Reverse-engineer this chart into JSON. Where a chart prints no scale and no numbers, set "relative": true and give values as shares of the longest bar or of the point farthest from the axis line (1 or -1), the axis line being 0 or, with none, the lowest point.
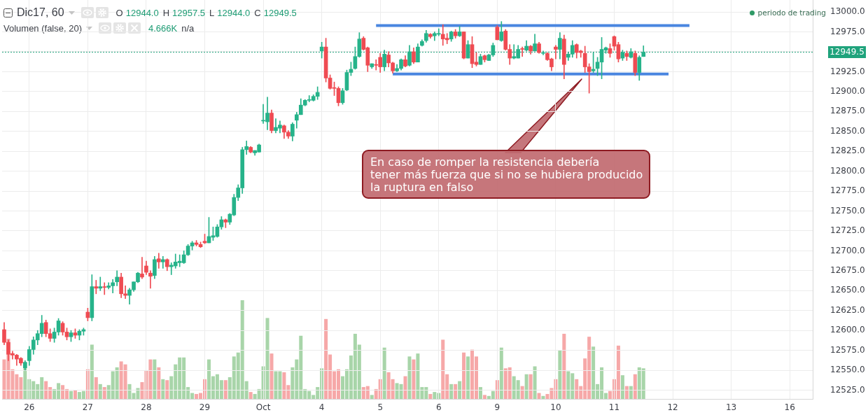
{
  "chart_data": [
    {
      "type": "candlestick",
      "title": "Dic17, 60",
      "subtitle": "O 12944.0 H 12957.5 L 12944.0 C 12949.5",
      "annotations": [
        "periodo de trading",
        "En caso de romper la resistencia debería\ntener más fuerza que si no se hubiera producido\nla ruptura en falso"
      ],
      "categories": [
        null,
        null,
        null,
        null,
        null,
        null,
        "26",
        null,
        null,
        null,
        null,
        null,
        null,
        null,
        null,
        null,
        null,
        null,
        null,
        null,
        "27",
        null,
        null,
        null,
        null,
        null,
        null,
        null,
        null,
        null,
        null,
        null,
        null,
        null,
        "28",
        null,
        null,
        null,
        null,
        null,
        null,
        null,
        null,
        null,
        null,
        null,
        null,
        null,
        "29",
        null,
        null,
        null,
        null,
        null,
        null,
        null,
        null,
        null,
        null,
        null,
        null,
        null,
        "Oct",
        null,
        null,
        null,
        null,
        null,
        null,
        null,
        null,
        null,
        null,
        null,
        null,
        null,
        "4",
        null,
        null,
        null,
        null,
        null,
        null,
        null,
        null,
        null,
        null,
        null,
        null,
        null,
        "5",
        null,
        null,
        null,
        null,
        null,
        null,
        null,
        null,
        null,
        null,
        null,
        null,
        null,
        "6",
        null,
        null,
        null,
        null,
        null,
        null,
        null,
        null,
        null,
        null,
        null,
        null,
        null,
        "9",
        null,
        null,
        null,
        null,
        null,
        null,
        null,
        null,
        null,
        null,
        null,
        null,
        null,
        "10",
        null,
        null,
        null,
        null,
        null,
        null,
        null,
        null,
        null,
        null,
        null,
        null,
        null,
        "11",
        null,
        null,
        null,
        null,
        null,
        null,
        null,
        null,
        null,
        null,
        null,
        null,
        null,
        "12",
        null,
        null,
        null,
        null,
        null,
        null,
        null,
        null,
        null,
        null,
        null,
        null,
        null,
        "13",
        null,
        null,
        null,
        null,
        null,
        null,
        null,
        null,
        null,
        null,
        null,
        null,
        null,
        "16",
        null,
        null,
        null,
        null,
        null
      ],
      "ohlc": [
        [
          12601,
          12610,
          12582,
          12585
        ],
        [
          12585,
          12588,
          12562,
          12570
        ],
        [
          12571,
          12574,
          12564,
          12569
        ],
        [
          12569,
          12570,
          12556,
          12564
        ],
        [
          12565,
          12566,
          12556,
          12559
        ],
        [
          12553,
          12562,
          12550,
          12560
        ],
        [
          12562,
          12580,
          12556,
          12576
        ],
        [
          12576,
          12592,
          12570,
          12588
        ],
        [
          12588,
          12600,
          12582,
          12596
        ],
        [
          12596,
          12619,
          12592,
          12609
        ],
        [
          12610,
          12613,
          12592,
          12596
        ],
        [
          12596,
          12602,
          12586,
          12590
        ],
        [
          12590,
          12603,
          12585,
          12598
        ],
        [
          12598,
          12615,
          12594,
          12612
        ],
        [
          12609,
          12611,
          12594,
          12598
        ],
        [
          12598,
          12603,
          12588,
          12592
        ],
        [
          12592,
          12600,
          12586,
          12597
        ],
        [
          12597,
          12602,
          12590,
          12594
        ],
        [
          12594,
          12601,
          12588,
          12599
        ],
        [
          12599,
          12603,
          12594,
          12601
        ],
        [
          12623,
          12628,
          12612,
          12616
        ],
        [
          12616,
          12670,
          12612,
          12655
        ],
        [
          12655,
          12663,
          12646,
          12653
        ],
        [
          12653,
          12667,
          12650,
          12655
        ],
        [
          12655,
          12660,
          12645,
          12654
        ],
        [
          12654,
          12660,
          12652,
          12656
        ],
        [
          12656,
          12664,
          12647,
          12660
        ],
        [
          12661,
          12675,
          12656,
          12667
        ],
        [
          12667,
          12672,
          12641,
          12646
        ],
        [
          12646,
          12656,
          12640,
          12644
        ],
        [
          12644,
          12653,
          12633,
          12651
        ],
        [
          12651,
          12661,
          12649,
          12661
        ],
        [
          12661,
          12673,
          12660,
          12672
        ],
        [
          12671,
          12692,
          12665,
          12667
        ],
        [
          12681,
          12687,
          12670,
          12673
        ],
        [
          12672,
          12675,
          12653,
          12668
        ],
        [
          12669,
          12693,
          12665,
          12689
        ],
        [
          12690,
          12697,
          12678,
          12686
        ],
        [
          12686,
          12693,
          12678,
          12689
        ],
        [
          12689,
          12690,
          12675,
          12680
        ],
        [
          12680,
          12685,
          12670,
          12682
        ],
        [
          12681,
          12696,
          12678,
          12686
        ],
        [
          12685,
          12695,
          12680,
          12687
        ],
        [
          12685,
          12700,
          12684,
          12695
        ],
        [
          12695,
          12708,
          12694,
          12706
        ],
        [
          12706,
          12712,
          12701,
          12710
        ],
        [
          12710,
          12713,
          12706,
          12708
        ],
        [
          12708,
          12711,
          12704,
          12705
        ],
        [
          12712,
          12721,
          12709,
          12710
        ],
        [
          12710,
          12742,
          12710,
          12718
        ],
        [
          12717,
          12730,
          12713,
          12719
        ],
        [
          12718,
          12733,
          12717,
          12730
        ],
        [
          12730,
          12743,
          12727,
          12739
        ],
        [
          12739,
          12740,
          12729,
          12736
        ],
        [
          12736,
          12747,
          12733,
          12746
        ],
        [
          12745,
          12771,
          12744,
          12767
        ],
        [
          12767,
          12783,
          12763,
          12779
        ],
        [
          12779,
          12830,
          12772,
          12827
        ],
        [
          12827,
          12838,
          12821,
          12831
        ],
        [
          12830,
          12831,
          12823,
          12824
        ],
        [
          12823,
          12826,
          12820,
          12826
        ],
        [
          12824,
          12834,
          12824,
          12833
        ],
        [
          12863,
          12884,
          12860,
          12864
        ],
        [
          12862,
          12893,
          12852,
          12873
        ],
        [
          12873,
          12877,
          12848,
          12851
        ],
        [
          12851,
          12866,
          12848,
          12855
        ],
        [
          12854,
          12863,
          12848,
          12858
        ],
        [
          12857,
          12858,
          12841,
          12849
        ],
        [
          12849,
          12851,
          12841,
          12844
        ],
        [
          12844,
          12861,
          12838,
          12859
        ],
        [
          12864,
          12874,
          12854,
          12871
        ],
        [
          12871,
          12891,
          12871,
          12883
        ],
        [
          12883,
          12890,
          12882,
          12889
        ],
        [
          12889,
          12895,
          12887,
          12890
        ],
        [
          12889,
          12896,
          12888,
          12894
        ],
        [
          12894,
          12906,
          12890,
          12899
        ],
        [
          12951,
          12962,
          12942,
          12956
        ],
        [
          12956,
          12967,
          12912,
          12917
        ],
        [
          12917,
          12921,
          12903,
          12904
        ],
        [
          12905,
          12912,
          12895,
          12904
        ],
        [
          12904,
          12906,
          12882,
          12886
        ],
        [
          12886,
          12904,
          12884,
          12901
        ],
        [
          12902,
          12927,
          12901,
          12924
        ],
        [
          12924,
          12937,
          12920,
          12928
        ],
        [
          12929,
          12956,
          12928,
          12944
        ],
        [
          12944,
          12974,
          12943,
          12966
        ],
        [
          12967,
          12969,
          12952,
          12953
        ],
        [
          12955,
          12956,
          12925,
          12933
        ],
        [
          12931,
          12935,
          12929,
          12935
        ],
        [
          12934,
          12940,
          12927,
          12933
        ],
        [
          12943,
          12948,
          12924,
          12931
        ],
        [
          12931,
          12952,
          12926,
          12947
        ],
        [
          12946,
          12950,
          12931,
          12936
        ],
        [
          12936,
          12937,
          12923,
          12926
        ],
        [
          12926,
          12934,
          12925,
          12929
        ],
        [
          12929,
          12941,
          12927,
          12940
        ],
        [
          12940,
          12945,
          12931,
          12932
        ],
        [
          12933,
          12958,
          12932,
          12950
        ],
        [
          12950,
          12955,
          12935,
          12937
        ],
        [
          12937,
          12960,
          12937,
          12956
        ],
        [
          12958,
          12965,
          12957,
          12963
        ],
        [
          12964,
          12977,
          12962,
          12973
        ],
        [
          12972,
          12973,
          12967,
          12969
        ],
        [
          12970,
          12975,
          12964,
          12973
        ],
        [
          12972,
          12979,
          12970,
          12973
        ],
        [
          12972,
          12984,
          12958,
          12966
        ],
        [
          12967,
          12973,
          12960,
          12965
        ],
        [
          12966,
          12976,
          12963,
          12975
        ],
        [
          12975,
          12978,
          12967,
          12970
        ],
        [
          12970,
          12982,
          12969,
          12975
        ],
        [
          12975,
          12975,
          12941,
          12942
        ],
        [
          12942,
          12964,
          12942,
          12959
        ],
        [
          12959,
          12969,
          12930,
          12935
        ],
        [
          12937,
          12949,
          12932,
          12934
        ],
        [
          12934,
          12947,
          12934,
          12944
        ],
        [
          12945,
          12946,
          12937,
          12940
        ],
        [
          12939,
          12947,
          12939,
          12946
        ],
        [
          12946,
          12961,
          12944,
          12958
        ],
        [
          12981,
          12983,
          12965,
          12965
        ],
        [
          12964,
          12988,
          12963,
          12975
        ],
        [
          12976,
          12978,
          12952,
          12953
        ],
        [
          12953,
          12959,
          12934,
          12942
        ],
        [
          12942,
          12959,
          12941,
          12944
        ],
        [
          12942,
          12958,
          12942,
          12953
        ],
        [
          12954,
          12956,
          12944,
          12953
        ],
        [
          12952,
          12964,
          12951,
          12957
        ],
        [
          12957,
          12958,
          12947,
          12951
        ],
        [
          12951,
          12972,
          12951,
          12960
        ],
        [
          12960,
          12962,
          12948,
          12949
        ],
        [
          12948,
          12951,
          12946,
          12949
        ],
        [
          12948,
          12949,
          12939,
          12940
        ],
        [
          12941,
          12942,
          12926,
          12931
        ],
        [
          12956,
          12958,
          12941,
          12953
        ],
        [
          12953,
          12974,
          12941,
          12967
        ],
        [
          12966,
          12971,
          12916,
          12934
        ],
        [
          12943,
          12949,
          12939,
          12947
        ],
        [
          12947,
          12964,
          12943,
          12958
        ],
        [
          12959,
          12960,
          12942,
          12949
        ],
        [
          12951,
          12952,
          12943,
          12949
        ],
        [
          12948,
          12957,
          12924,
          12931
        ],
        [
          12931,
          12935,
          12898,
          12925
        ],
        [
          12926,
          12949,
          12924,
          12928
        ],
        [
          12929,
          12943,
          12920,
          12937
        ],
        [
          12937,
          12968,
          12916,
          12953
        ],
        [
          12952,
          12956,
          12948,
          12955
        ],
        [
          12954,
          12960,
          12943,
          12948
        ],
        [
          12969,
          12970,
          12952,
          12957
        ],
        [
          12959,
          12962,
          12937,
          12941
        ],
        [
          12942,
          12952,
          12939,
          12949
        ],
        [
          12948,
          12951,
          12939,
          12944
        ],
        [
          12943,
          12954,
          12942,
          12950
        ],
        [
          12948,
          12951,
          12920,
          12924
        ],
        [
          12924,
          12945,
          12914,
          12943
        ],
        [
          12944,
          12957.5,
          12944,
          12949.5
        ],
        null,
        null,
        null,
        null,
        null,
        null,
        null,
        null,
        null,
        null,
        null,
        null,
        null,
        null,
        null,
        null,
        null,
        null,
        null,
        null,
        null,
        null,
        null,
        null,
        null,
        null,
        null,
        null,
        null,
        null,
        null,
        null,
        null,
        null,
        null,
        null,
        null,
        null,
        null,
        null
      ],
      "colors": [
        "#ef4b52",
        "#ef4b52",
        "#ef4b52",
        "#ef4b52",
        "#ef4b52",
        "#26b38a",
        "#26b38a",
        "#26b38a",
        "#26b38a",
        "#26b38a",
        "#ef4b52",
        "#ef4b52",
        "#26b38a",
        "#26b38a",
        "#ef4b52",
        "#ef4b52",
        "#26b38a",
        "#ef4b52",
        "#26b38a",
        "#26b38a",
        "#ef4b52",
        "#26b38a",
        "#ef4b52",
        "#26b38a",
        "#ef4b52",
        "#26b38a",
        "#26b38a",
        "#26b38a",
        "#ef4b52",
        "#ef4b52",
        "#26b38a",
        "#26b38a",
        "#26b38a",
        "#ef4b52",
        "#ef4b52",
        "#ef4b52",
        "#26b38a",
        "#ef4b52",
        "#26b38a",
        "#ef4b52",
        "#26b38a",
        "#26b38a",
        "#26b38a",
        "#26b38a",
        "#26b38a",
        "#26b38a",
        "#ef4b52",
        "#ef4b52",
        "#ef4b52",
        "#26b38a",
        "#26b38a",
        "#26b38a",
        "#26b38a",
        "#ef4b52",
        "#26b38a",
        "#26b38a",
        "#26b38a",
        "#26b38a",
        "#26b38a",
        "#ef4b52",
        "#26b38a",
        "#26b38a",
        "#26b38a",
        "#26b38a",
        "#ef4b52",
        "#26b38a",
        "#26b38a",
        "#ef4b52",
        "#ef4b52",
        "#26b38a",
        "#26b38a",
        "#26b38a",
        "#26b38a",
        "#26b38a",
        "#26b38a",
        "#26b38a",
        "#26b38a",
        "#ef4b52",
        "#ef4b52",
        "#ef4b52",
        "#ef4b52",
        "#26b38a",
        "#26b38a",
        "#26b38a",
        "#26b38a",
        "#26b38a",
        "#ef4b52",
        "#ef4b52",
        "#26b38a",
        "#ef4b52",
        "#ef4b52",
        "#26b38a",
        "#ef4b52",
        "#ef4b52",
        "#26b38a",
        "#26b38a",
        "#ef4b52",
        "#26b38a",
        "#ef4b52",
        "#26b38a",
        "#26b38a",
        "#26b38a",
        "#ef4b52",
        "#26b38a",
        "#26b38a",
        "#ef4b52",
        "#ef4b52",
        "#26b38a",
        "#ef4b52",
        "#26b38a",
        "#ef4b52",
        "#26b38a",
        "#ef4b52",
        "#ef4b52",
        "#26b38a",
        "#ef4b52",
        "#26b38a",
        "#26b38a",
        "#ef4b52",
        "#26b38a",
        "#ef4b52",
        "#ef4b52",
        "#26b38a",
        "#26b38a",
        "#ef4b52",
        "#26b38a",
        "#ef4b52",
        "#26b38a",
        "#ef4b52",
        "#26b38a",
        "#ef4b52",
        "#ef4b52",
        "#ef4b52",
        "#26b38a",
        "#ef4b52",
        "#26b38a",
        "#26b38a",
        "#ef4b52",
        "#ef4b52",
        "#ef4b52",
        "#ef4b52",
        "#26b38a",
        "#26b38a",
        "#26b38a",
        "#26b38a",
        "#ef4b52",
        "#ef4b52",
        "#ef4b52",
        "#26b38a",
        "#ef4b52",
        "#26b38a",
        "#ef4b52",
        "#26b38a",
        "#26b38a",
        null,
        null,
        null,
        null,
        null,
        null,
        null,
        null,
        null,
        null,
        null,
        null,
        null,
        null,
        null,
        null,
        null,
        null,
        null,
        null,
        null,
        null,
        null,
        null,
        null,
        null,
        null,
        null,
        null,
        null,
        null,
        null,
        null,
        null,
        null,
        null,
        null,
        null,
        null,
        null
      ],
      "series": [
        {
          "type": "line",
          "color": "#4a86e0",
          "values": [
            null,
            null,
            null,
            null,
            null,
            null,
            null,
            null,
            null,
            null,
            null,
            null,
            null,
            null,
            null,
            null,
            null,
            null,
            null,
            null,
            null,
            null,
            null,
            null,
            null,
            null,
            null,
            null,
            null,
            null,
            null,
            null,
            null,
            null,
            null,
            null,
            null,
            null,
            null,
            null,
            null,
            null,
            null,
            null,
            null,
            null,
            null,
            null,
            null,
            null,
            null,
            null,
            null,
            null,
            null,
            null,
            null,
            null,
            null,
            null,
            null,
            null,
            null,
            null,
            null,
            null,
            null,
            null,
            null,
            null,
            null,
            null,
            null,
            null,
            null,
            null,
            null,
            null,
            null,
            null,
            null,
            null,
            null,
            null,
            null,
            null,
            null,
            null,
            null,
            12983,
            null,
            null,
            null,
            null,
            null,
            null,
            null,
            null,
            null,
            null,
            null,
            null,
            null,
            null,
            null,
            null,
            null,
            null,
            null,
            null,
            null,
            null,
            null,
            null,
            null,
            null,
            null,
            null,
            null,
            null,
            null,
            null,
            null,
            null,
            null,
            null,
            null,
            null,
            null,
            null,
            null,
            null,
            null,
            null,
            null,
            null,
            null,
            null,
            null,
            null,
            null,
            null,
            null,
            null,
            null,
            null,
            null,
            null,
            null,
            null,
            null,
            null,
            null,
            null,
            null,
            null,
            null,
            null,
            null,
            null,
            null,
            null,
            null,
            null,
            12983,
            null,
            null,
            null,
            null,
            null,
            null,
            null,
            null,
            null,
            null,
            null,
            null,
            null,
            null,
            null,
            null,
            null,
            null,
            null,
            null,
            null,
            null,
            null,
            null,
            null,
            null,
            null,
            null,
            null
          ]
        },
        {
          "type": "line",
          "color": "#4a86e0",
          "values": [
            null,
            null,
            null,
            null,
            null,
            null,
            null,
            null,
            null,
            null,
            null,
            null,
            null,
            null,
            null,
            null,
            null,
            null,
            null,
            null,
            null,
            null,
            null,
            null,
            null,
            null,
            null,
            null,
            null,
            null,
            null,
            null,
            null,
            null,
            null,
            null,
            null,
            null,
            null,
            null,
            null,
            null,
            null,
            null,
            null,
            null,
            null,
            null,
            null,
            null,
            null,
            null,
            null,
            null,
            null,
            null,
            null,
            null,
            null,
            null,
            null,
            null,
            null,
            null,
            null,
            null,
            null,
            null,
            null,
            null,
            null,
            null,
            null,
            null,
            null,
            null,
            null,
            null,
            null,
            null,
            null,
            null,
            null,
            null,
            null,
            null,
            null,
            null,
            null,
            null,
            null,
            null,
            null,
            12922,
            null,
            null,
            null,
            null,
            null,
            null,
            null,
            null,
            null,
            null,
            null,
            null,
            null,
            null,
            null,
            null,
            null,
            null,
            null,
            null,
            null,
            null,
            null,
            null,
            null,
            null,
            null,
            null,
            null,
            null,
            null,
            null,
            null,
            null,
            null,
            null,
            null,
            null,
            null,
            null,
            null,
            null,
            null,
            null,
            null,
            null,
            null,
            null,
            null,
            null,
            null,
            null,
            null,
            null,
            null,
            null,
            null,
            null,
            null,
            null,
            null,
            null,
            null,
            null,
            null,
            12922,
            null,
            null,
            null,
            null,
            null,
            null,
            null,
            null,
            null,
            null,
            null,
            null,
            null,
            null,
            null,
            null,
            null,
            null,
            null,
            null,
            null,
            null,
            null,
            null,
            null,
            null,
            null,
            null,
            null,
            null,
            null,
            null,
            null,
            null
          ]
        }
      ],
      "ylim": [
        12514,
        13015
      ],
      "yticks": [
        {
          "value": 12525,
          "label": "12525.0"
        },
        {
          "value": 12550,
          "label": "12550.0"
        },
        {
          "value": 12575,
          "label": "12575.0"
        },
        {
          "value": 12600,
          "label": "12600.0"
        },
        {
          "value": 12625,
          "label": "12625.0"
        },
        {
          "value": 12650,
          "label": "12650.0"
        },
        {
          "value": 12675,
          "label": "12675.0"
        },
        {
          "value": 12700,
          "label": "12700.0"
        },
        {
          "value": 12725,
          "label": "12725.0"
        },
        {
          "value": 12750,
          "label": "12750.0"
        },
        {
          "value": 12775,
          "label": "12775.0"
        },
        {
          "value": 12800,
          "label": "12800.0"
        },
        {
          "value": 12825,
          "label": "12825.0"
        },
        {
          "value": 12850,
          "label": "12850.0"
        },
        {
          "value": 12875,
          "label": "12875.0"
        },
        {
          "value": 12900,
          "label": "12900.0"
        },
        {
          "value": 12925,
          "label": "12925.0"
        },
        {
          "value": 12950,
          "label": null
        },
        {
          "value": 12975,
          "label": "12975.0"
        },
        {
          "value": 13000,
          "label": "13000.0"
        }
      ],
      "ref_lines": [
        {
          "axis": "y",
          "value": 12949.5,
          "label": "12949.5",
          "color": "#1fa37c",
          "line_style": "dotted"
        }
      ],
      "grid": true
    },
    {
      "type": "bar",
      "title": "Volumen (false, 20)",
      "subtitle": "4.666K n/a",
      "relative": true,
      "tick_labels": false,
      "categories": [
        null,
        null,
        null,
        null,
        null,
        null,
        null,
        null,
        null,
        null,
        null,
        null,
        null,
        null,
        null,
        null,
        null,
        null,
        null,
        null,
        null,
        null,
        null,
        null,
        null,
        null,
        null,
        null,
        null,
        null,
        null,
        null,
        null,
        null,
        null,
        null,
        null,
        null,
        null,
        null,
        null,
        null,
        null,
        null,
        null,
        null,
        null,
        null,
        null,
        null,
        null,
        null,
        null,
        null,
        null,
        null,
        null,
        null,
        null,
        null,
        null,
        null,
        null,
        null,
        null,
        null,
        null,
        null,
        null,
        null,
        null,
        null,
        null,
        null,
        null,
        null,
        null,
        null,
        null,
        null,
        null,
        null,
        null,
        null,
        null,
        null,
        null,
        null,
        null,
        null,
        null,
        null,
        null,
        null,
        null,
        null,
        null,
        null,
        null,
        null,
        null,
        null,
        null,
        null,
        null,
        null,
        null,
        null,
        null,
        null,
        null,
        null,
        null,
        null,
        null,
        null,
        null,
        null,
        null,
        null,
        null,
        null,
        null,
        null,
        null,
        null,
        null,
        null,
        null,
        null,
        null,
        null,
        null,
        null,
        null,
        null,
        null,
        null,
        null,
        null,
        null,
        null,
        null,
        null,
        null,
        null,
        null,
        null,
        null,
        null,
        null,
        null,
        null,
        null,
        null,
        null,
        null,
        null,
        null,
        null,
        null,
        null,
        null,
        null,
        null,
        null,
        null,
        null,
        null,
        null,
        null,
        null,
        null,
        null,
        null,
        null,
        null,
        null,
        null,
        null,
        null,
        null,
        null,
        null,
        null,
        null,
        null,
        null,
        null,
        null,
        null,
        null,
        null,
        null
      ],
      "values": [
        0.4,
        0.61,
        0.3,
        0.25,
        0.22,
        0.37,
        0.2,
        0.18,
        0.15,
        0.22,
        0.18,
        0.12,
        0.1,
        0.16,
        0.14,
        0.1,
        0.08,
        0.09,
        0.07,
        0.08,
        0.3,
        0.55,
        0.22,
        0.15,
        0.12,
        0.14,
        0.28,
        0.32,
        0.38,
        0.35,
        0.15,
        0.06,
        0.11,
        0.17,
        0.29,
        0.4,
        0.4,
        0.32,
        0.2,
        0.19,
        0.23,
        0.35,
        0.42,
        0.42,
        0.12,
        0.06,
        0.05,
        0.06,
        0.2,
        0.4,
        0.23,
        0.25,
        0.19,
        0.19,
        0.22,
        0.43,
        0.47,
        1,
        0.18,
        0.07,
        0.05,
        0.1,
        0.33,
        0.82,
        0.46,
        0.28,
        0.28,
        0.27,
        0.14,
        0.32,
        0.4,
        0.64,
        0.1,
        0.08,
        0.04,
        0.12,
        0.31,
        0.81,
        0.45,
        0.28,
        0.3,
        0.23,
        0.3,
        0.44,
        0.66,
        0.55,
        0.12,
        0.13,
        0.04,
        0.1,
        0.2,
        0.52,
        0.27,
        0.2,
        0.16,
        0.15,
        0.23,
        0.43,
        0.4,
        0.46,
        0.12,
        0.12,
        0.05,
        0.07,
        0.06,
        0.6,
        0.25,
        0.15,
        0.15,
        0.18,
        0.47,
        0.43,
        0.5,
        0.43,
        0.12,
        0.04,
        0.03,
        0.08,
        0.19,
        0.52,
        0.31,
        0.32,
        0.23,
        0.19,
        0.13,
        0.25,
        0.25,
        0.33,
        0.06,
        0.03,
        0.05,
        0.11,
        0.2,
        0.49,
        0.66,
        0.28,
        0.26,
        0.2,
        0.13,
        0.41,
        0.63,
        0.53,
        0.15,
        0.32,
        0.06,
        0.08,
        0.2,
        0.54,
        0.24,
        0.13,
        0.13,
        0.25,
        0.32,
        0.31,
        null,
        null,
        null,
        null,
        null,
        null,
        null,
        null,
        null,
        null,
        null,
        null,
        null,
        null,
        null,
        null,
        null,
        null,
        null,
        null,
        null,
        null,
        null,
        null,
        null,
        null,
        null,
        null,
        null,
        null,
        null,
        null,
        null,
        null,
        null,
        null,
        null,
        null,
        null,
        null
      ],
      "colors": [
        "#f6a8a8",
        "#f6a8a8",
        "#f6a8a8",
        "#f6a8a8",
        "#f6a8a8",
        "#a8d5a9",
        "#a8d5a9",
        "#a8d5a9",
        "#a8d5a9",
        "#a8d5a9",
        "#f6a8a8",
        "#f6a8a8",
        "#a8d5a9",
        "#a8d5a9",
        "#f6a8a8",
        "#f6a8a8",
        "#a8d5a9",
        "#f6a8a8",
        "#a8d5a9",
        "#a8d5a9",
        "#f6a8a8",
        "#a8d5a9",
        "#f6a8a8",
        "#a8d5a9",
        "#f6a8a8",
        "#a8d5a9",
        "#a8d5a9",
        "#a8d5a9",
        "#f6a8a8",
        "#f6a8a8",
        "#a8d5a9",
        "#a8d5a9",
        "#a8d5a9",
        "#f6a8a8",
        "#f6a8a8",
        "#f6a8a8",
        "#a8d5a9",
        "#f6a8a8",
        "#a8d5a9",
        "#f6a8a8",
        "#a8d5a9",
        "#a8d5a9",
        "#a8d5a9",
        "#a8d5a9",
        "#a8d5a9",
        "#a8d5a9",
        "#f6a8a8",
        "#f6a8a8",
        "#f6a8a8",
        "#a8d5a9",
        "#a8d5a9",
        "#a8d5a9",
        "#a8d5a9",
        "#f6a8a8",
        "#a8d5a9",
        "#a8d5a9",
        "#a8d5a9",
        "#a8d5a9",
        "#a8d5a9",
        "#f6a8a8",
        "#a8d5a9",
        "#a8d5a9",
        "#a8d5a9",
        "#a8d5a9",
        "#f6a8a8",
        "#a8d5a9",
        "#a8d5a9",
        "#f6a8a8",
        "#f6a8a8",
        "#a8d5a9",
        "#a8d5a9",
        "#a8d5a9",
        "#a8d5a9",
        "#a8d5a9",
        "#a8d5a9",
        "#a8d5a9",
        "#a8d5a9",
        "#f6a8a8",
        "#f6a8a8",
        "#f6a8a8",
        "#f6a8a8",
        "#a8d5a9",
        "#a8d5a9",
        "#a8d5a9",
        "#a8d5a9",
        "#a8d5a9",
        "#f6a8a8",
        "#f6a8a8",
        "#a8d5a9",
        "#f6a8a8",
        "#f6a8a8",
        "#a8d5a9",
        "#f6a8a8",
        "#f6a8a8",
        "#a8d5a9",
        "#a8d5a9",
        "#f6a8a8",
        "#a8d5a9",
        "#f6a8a8",
        "#a8d5a9",
        "#a8d5a9",
        "#a8d5a9",
        "#f6a8a8",
        "#a8d5a9",
        "#a8d5a9",
        "#f6a8a8",
        "#f6a8a8",
        "#a8d5a9",
        "#f6a8a8",
        "#a8d5a9",
        "#f6a8a8",
        "#a8d5a9",
        "#f6a8a8",
        "#f6a8a8",
        "#a8d5a9",
        "#f6a8a8",
        "#a8d5a9",
        "#a8d5a9",
        "#f6a8a8",
        "#a8d5a9",
        "#f6a8a8",
        "#f6a8a8",
        "#a8d5a9",
        "#a8d5a9",
        "#f6a8a8",
        "#a8d5a9",
        "#f6a8a8",
        "#a8d5a9",
        "#f6a8a8",
        "#a8d5a9",
        "#f6a8a8",
        "#f6a8a8",
        "#f6a8a8",
        "#a8d5a9",
        "#f6a8a8",
        "#a8d5a9",
        "#a8d5a9",
        "#f6a8a8",
        "#f6a8a8",
        "#f6a8a8",
        "#f6a8a8",
        "#a8d5a9",
        "#a8d5a9",
        "#a8d5a9",
        "#a8d5a9",
        "#f6a8a8",
        "#f6a8a8",
        "#f6a8a8",
        "#a8d5a9",
        "#f6a8a8",
        "#a8d5a9",
        "#f6a8a8",
        "#a8d5a9",
        "#a8d5a9",
        null,
        null,
        null,
        null,
        null,
        null,
        null,
        null,
        null,
        null,
        null,
        null,
        null,
        null,
        null,
        null,
        null,
        null,
        null,
        null,
        null,
        null,
        null,
        null,
        null,
        null,
        null,
        null,
        null,
        null,
        null,
        null,
        null,
        null,
        null,
        null,
        null,
        null,
        null,
        null
      ]
    }
  ]
}
